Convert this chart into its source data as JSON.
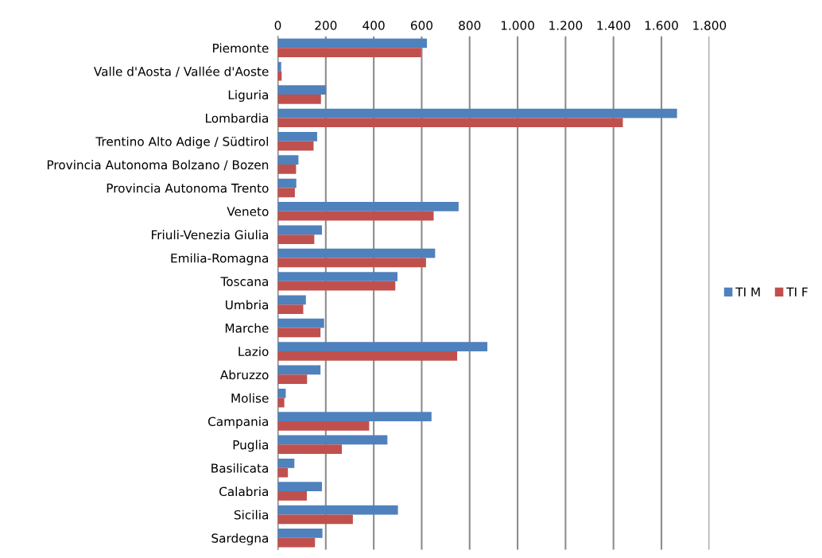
{
  "chart_data": {
    "type": "bar",
    "orientation": "horizontal",
    "categories": [
      "Piemonte",
      "Valle d'Aosta / Vallée d'Aoste",
      "Liguria",
      "Lombardia",
      "Trentino Alto Adige / Südtirol",
      "Provincia Autonoma Bolzano / Bozen",
      "Provincia Autonoma Trento",
      "Veneto",
      "Friuli-Venezia Giulia",
      "Emilia-Romagna",
      "Toscana",
      "Umbria",
      "Marche",
      "Lazio",
      "Abruzzo",
      "Molise",
      "Campania",
      "Puglia",
      "Basilicata",
      "Calabria",
      "Sicilia",
      "Sardegna"
    ],
    "series": [
      {
        "name": "TI M",
        "color": "#4f81bd",
        "values": [
          622,
          14,
          201,
          1665,
          164,
          86,
          77,
          754,
          184,
          656,
          499,
          117,
          193,
          874,
          178,
          33,
          641,
          457,
          69,
          184,
          501,
          186
        ]
      },
      {
        "name": "TI F",
        "color": "#c0504d",
        "values": [
          598,
          16,
          180,
          1439,
          149,
          76,
          71,
          650,
          152,
          618,
          490,
          106,
          178,
          748,
          122,
          27,
          381,
          267,
          42,
          121,
          313,
          155
        ]
      }
    ],
    "xlim": [
      0,
      1800
    ],
    "xticks": [
      0,
      200,
      400,
      600,
      800,
      {
        "value": 1000,
        "label": "1.000"
      },
      {
        "value": 1200,
        "label": "1.200"
      },
      {
        "value": 1400,
        "label": "1.400"
      },
      {
        "value": 1600,
        "label": "1.600"
      },
      {
        "value": 1800,
        "label": "1.800"
      }
    ],
    "grid": "x",
    "legend": "right"
  }
}
